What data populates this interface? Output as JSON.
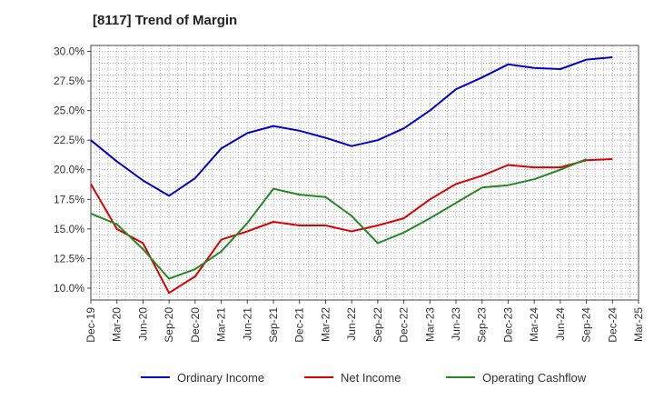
{
  "chart_data": {
    "type": "line",
    "title": "[8117]  Trend of Margin",
    "xlabel": "",
    "ylabel": "",
    "x": [
      "Dec-19",
      "Mar-20",
      "Jun-20",
      "Sep-20",
      "Dec-20",
      "Mar-21",
      "Jun-21",
      "Sep-21",
      "Dec-21",
      "Mar-22",
      "Jun-22",
      "Sep-22",
      "Dec-22",
      "Mar-23",
      "Jun-23",
      "Sep-23",
      "Dec-23",
      "Mar-24",
      "Jun-24",
      "Sep-24",
      "Dec-24",
      "Mar-25"
    ],
    "ylim": [
      9.0,
      30.5
    ],
    "yticks": [
      10.0,
      12.5,
      15.0,
      17.5,
      20.0,
      22.5,
      25.0,
      27.5,
      30.0
    ],
    "ytick_labels": [
      "10.0%",
      "12.5%",
      "15.0%",
      "17.5%",
      "20.0%",
      "22.5%",
      "25.0%",
      "27.5%",
      "30.0%"
    ],
    "grid": true,
    "legend_position": "bottom",
    "series": [
      {
        "name": "Ordinary Income",
        "color": "#0000cc",
        "values": [
          22.5,
          20.7,
          19.1,
          17.8,
          19.3,
          21.8,
          23.1,
          23.7,
          23.3,
          22.7,
          22.0,
          22.5,
          23.5,
          25.0,
          26.8,
          27.8,
          28.9,
          28.6,
          28.5,
          29.3,
          29.5,
          null
        ]
      },
      {
        "name": "Net Income",
        "color": "#dd0000",
        "values": [
          18.8,
          15.0,
          13.8,
          9.6,
          11.0,
          14.1,
          14.8,
          15.6,
          15.3,
          15.3,
          14.8,
          15.3,
          15.9,
          17.5,
          18.8,
          19.5,
          20.4,
          20.2,
          20.2,
          20.8,
          20.9,
          null
        ]
      },
      {
        "name": "Operating Cashflow",
        "color": "#228822",
        "values": [
          16.3,
          15.4,
          13.3,
          10.8,
          11.6,
          13.1,
          15.5,
          18.4,
          17.9,
          17.7,
          16.1,
          13.8,
          14.7,
          15.9,
          17.2,
          18.5,
          18.7,
          19.2,
          20.0,
          20.9,
          null,
          null
        ]
      }
    ]
  }
}
